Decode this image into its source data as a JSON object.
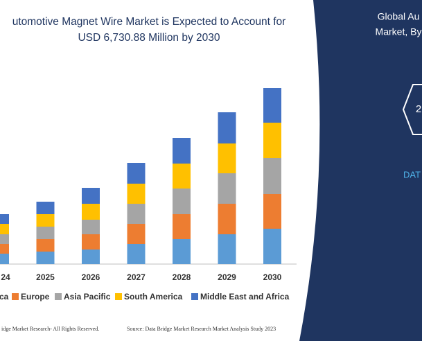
{
  "chart_data": {
    "type": "stacked_bar",
    "title": [
      "utomotive Magnet Wire Market is Expected to Account for",
      "USD 6,730.88 Million by 2030"
    ],
    "categories": [
      "24",
      "2025",
      "2026",
      "2027",
      "2028",
      "2029",
      "2030"
    ],
    "series": [
      {
        "name": "ca",
        "color": "#5b9bd5",
        "values": [
          15,
          18,
          21,
          29,
          36,
          43,
          51
        ]
      },
      {
        "name": "Europe",
        "color": "#ed7d31",
        "values": [
          14,
          18,
          22,
          29,
          36,
          44,
          50
        ]
      },
      {
        "name": "Asia Pacific",
        "color": "#a5a5a5",
        "values": [
          14,
          18,
          21,
          29,
          37,
          44,
          52
        ]
      },
      {
        "name": "South America",
        "color": "#ffc000",
        "values": [
          15,
          18,
          23,
          29,
          36,
          43,
          51
        ]
      },
      {
        "name": "Middle East and Africa",
        "color": "#4472c4",
        "values": [
          14,
          18,
          23,
          30,
          37,
          45,
          50
        ]
      }
    ]
  },
  "side_panel": {
    "title": [
      "Global Au",
      "Market, By"
    ],
    "badge": "2",
    "brand": "DAT"
  },
  "footer": {
    "copyright": "idge Market Research- All Rights Reserved.",
    "source": "Source: Data Bridge Market Research  Market Analysis Study 2023"
  }
}
